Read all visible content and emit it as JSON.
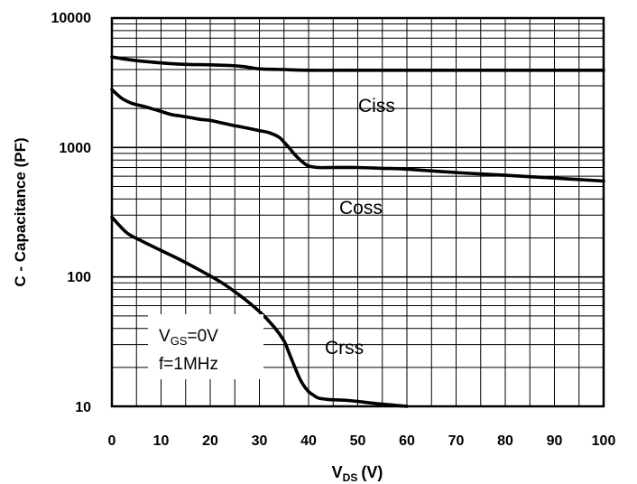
{
  "chart_data": {
    "type": "line",
    "x_axis": {
      "label_main": "V",
      "label_sub": "DS",
      "label_unit": "(V)",
      "range": [
        0,
        100
      ],
      "ticks": [
        "0",
        "10",
        "20",
        "30",
        "40",
        "50",
        "60",
        "70",
        "80",
        "90",
        "100"
      ],
      "scale": "linear"
    },
    "y_axis": {
      "label": "C - Capacitance (PF)",
      "range": [
        10,
        10000
      ],
      "ticks": [
        "10",
        "100",
        "1000",
        "10000"
      ],
      "scale": "log"
    },
    "grid": true,
    "series": [
      {
        "name": "Ciss",
        "x": [
          0,
          3,
          6,
          10,
          13,
          16,
          20,
          24,
          26,
          28,
          30,
          35,
          40,
          50,
          60,
          70,
          80,
          90,
          100
        ],
        "y": [
          5000,
          4800,
          4650,
          4500,
          4420,
          4380,
          4350,
          4300,
          4250,
          4150,
          4050,
          4000,
          3950,
          3950,
          3950,
          3950,
          3950,
          3950,
          3950
        ]
      },
      {
        "name": "Coss",
        "x": [
          0,
          2,
          4,
          6,
          8,
          10,
          12,
          14,
          16,
          18,
          20,
          22,
          24,
          26,
          28,
          30,
          32,
          34,
          35,
          36,
          37,
          38,
          39,
          40,
          42,
          45,
          50,
          55,
          60,
          70,
          80,
          90,
          100
        ],
        "y": [
          2800,
          2400,
          2200,
          2100,
          2000,
          1900,
          1800,
          1750,
          1700,
          1650,
          1620,
          1560,
          1500,
          1450,
          1400,
          1350,
          1300,
          1200,
          1100,
          1000,
          900,
          820,
          760,
          720,
          700,
          700,
          700,
          690,
          680,
          640,
          610,
          580,
          550
        ]
      },
      {
        "name": "Crss",
        "x": [
          0,
          3,
          6,
          10,
          14,
          18,
          22,
          26,
          30,
          33,
          35,
          36,
          37,
          38,
          39,
          40,
          41,
          42,
          44,
          48,
          50,
          55,
          60
        ],
        "y": [
          290,
          220,
          190,
          160,
          135,
          112,
          92,
          72,
          54,
          41,
          32,
          26,
          21,
          17,
          14.5,
          13,
          12.2,
          11.6,
          11.3,
          11.1,
          10.9,
          10.4,
          10
        ]
      }
    ],
    "annotations": {
      "vgs_main": "V",
      "vgs_sub": "GS",
      "vgs_value": "=0V",
      "freq": "f=1MHz"
    }
  }
}
